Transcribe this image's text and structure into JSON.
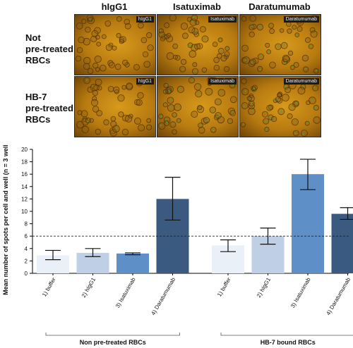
{
  "micrographs": {
    "columns": [
      "hIgG1",
      "Isatuximab",
      "Daratumumab"
    ],
    "rows": [
      {
        "label_lines": [
          "Not",
          "pre-treated",
          "RBCs"
        ],
        "tags": [
          "hIgG1",
          "Isatuximab",
          "Daratumumab"
        ],
        "green_level": [
          0.05,
          0.35,
          0.55
        ]
      },
      {
        "label_lines": [
          "HB-7",
          "pre-treated",
          "RBCs"
        ],
        "tags": [
          "hIgG1",
          "Isatuximab",
          "Daratumumab"
        ],
        "green_level": [
          0.05,
          0.9,
          0.6
        ]
      }
    ]
  },
  "chart_data": {
    "type": "bar",
    "ylabel": "Mean number of spots per cell and well (n = 3 wells)",
    "ylim": [
      0,
      20
    ],
    "yticks": [
      0,
      2,
      4,
      6,
      8,
      10,
      12,
      14,
      16,
      18,
      20
    ],
    "reference_line": 6,
    "categories": [
      "1) buffer",
      "2) hIgG1",
      "3) Isatuximab",
      "4) Daratumumab",
      "1) buffer",
      "2) hIgG1",
      "3) Isatuximab",
      "4) Daratumumab"
    ],
    "values": [
      2.9,
      3.3,
      3.2,
      12.0,
      4.5,
      6.0,
      16.0,
      9.6
    ],
    "error_low": [
      2.2,
      2.7,
      3.0,
      8.6,
      3.5,
      4.7,
      13.5,
      8.7
    ],
    "error_high": [
      3.7,
      4.0,
      3.3,
      15.5,
      5.4,
      7.3,
      18.4,
      10.6
    ],
    "colors": [
      "#e9f0f8",
      "#bfcfe6",
      "#5f8fc7",
      "#3b5a80",
      "#e9f0f8",
      "#bfcfe6",
      "#5f8fc7",
      "#3b5a80"
    ],
    "groups": [
      {
        "label": "Non pre-treated RBCs",
        "start": 0,
        "end": 3
      },
      {
        "label": "HB-7 bound RBCs",
        "start": 4,
        "end": 7
      }
    ]
  }
}
